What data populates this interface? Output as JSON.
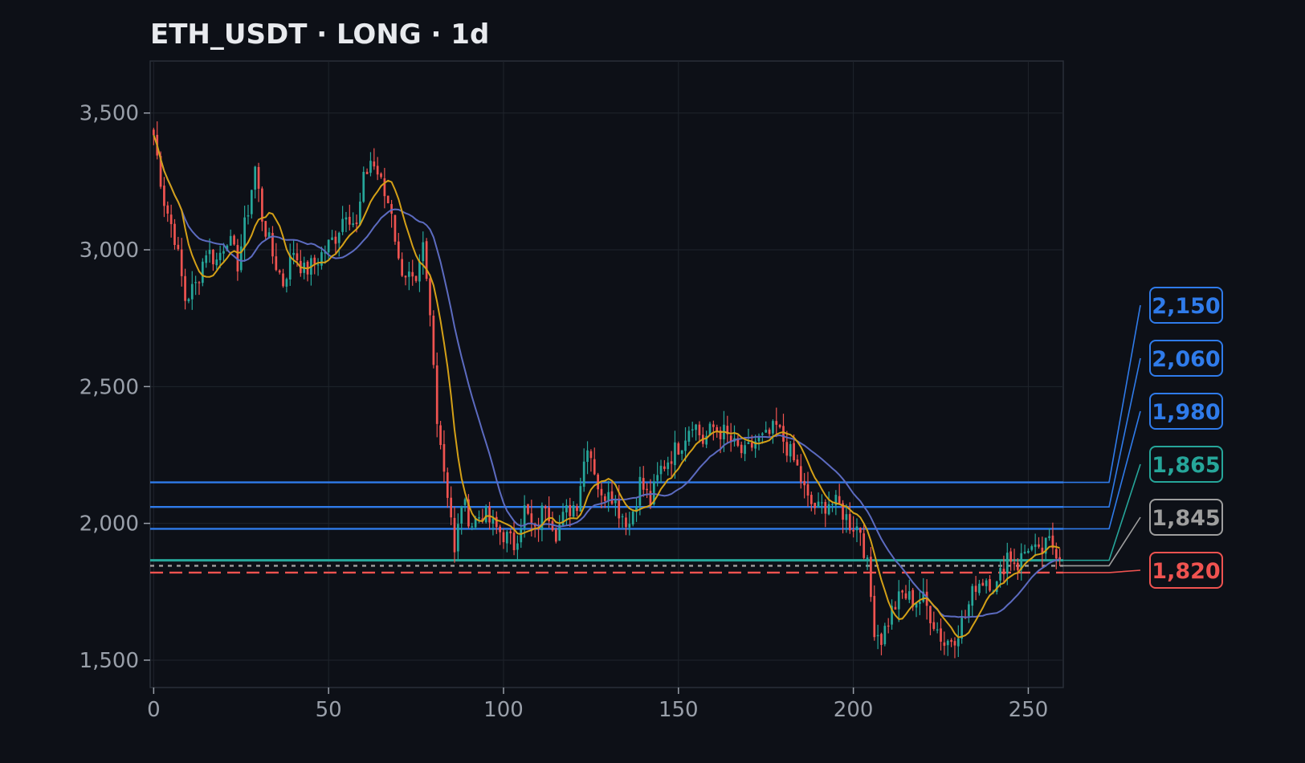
{
  "chart_data": {
    "type": "candlestick",
    "title": "ETH_USDT · LONG · 1d",
    "xlabel": "",
    "ylabel": "",
    "xlim": [
      -1,
      260
    ],
    "ylim": [
      1400,
      3690
    ],
    "x_ticks": [
      0,
      50,
      100,
      150,
      200,
      250
    ],
    "y_ticks": [
      1500,
      2000,
      2500,
      3000,
      3500
    ],
    "y_tick_labels": [
      "1,500",
      "2,000",
      "2,500",
      "3,000",
      "3,500"
    ],
    "x_tick_labels": [
      "0",
      "50",
      "100",
      "150",
      "200",
      "250"
    ],
    "grid": true,
    "colors": {
      "up": "#26a69a",
      "down": "#ef5350",
      "ma_fast": "#d4a017",
      "ma_slow": "#5c6bc0",
      "tp": "#2f7bea",
      "entry": "#26a69a",
      "current": "#9e9e9e",
      "stop": "#ef5350"
    },
    "close_anchors": [
      [
        0,
        3420
      ],
      [
        3,
        3180
      ],
      [
        6,
        3050
      ],
      [
        9,
        2820
      ],
      [
        12,
        2870
      ],
      [
        15,
        3000
      ],
      [
        18,
        2960
      ],
      [
        21,
        3050
      ],
      [
        24,
        2950
      ],
      [
        27,
        3150
      ],
      [
        29,
        3300
      ],
      [
        31,
        3120
      ],
      [
        34,
        2980
      ],
      [
        37,
        2880
      ],
      [
        40,
        3000
      ],
      [
        43,
        2920
      ],
      [
        46,
        2950
      ],
      [
        49,
        3000
      ],
      [
        52,
        3050
      ],
      [
        55,
        3150
      ],
      [
        58,
        3080
      ],
      [
        60,
        3250
      ],
      [
        62,
        3330
      ],
      [
        64,
        3280
      ],
      [
        66,
        3200
      ],
      [
        68,
        3150
      ],
      [
        70,
        2950
      ],
      [
        73,
        2900
      ],
      [
        75,
        2850
      ],
      [
        77,
        3000
      ],
      [
        79,
        2750
      ],
      [
        81,
        2400
      ],
      [
        83,
        2200
      ],
      [
        85,
        2030
      ],
      [
        86,
        1880
      ],
      [
        88,
        2080
      ],
      [
        91,
        2000
      ],
      [
        94,
        2040
      ],
      [
        97,
        1990
      ],
      [
        100,
        1960
      ],
      [
        103,
        1920
      ],
      [
        106,
        2050
      ],
      [
        109,
        1960
      ],
      [
        112,
        2080
      ],
      [
        115,
        1970
      ],
      [
        118,
        2040
      ],
      [
        121,
        2080
      ],
      [
        124,
        2300
      ],
      [
        126,
        2200
      ],
      [
        128,
        2080
      ],
      [
        130,
        2140
      ],
      [
        133,
        2050
      ],
      [
        136,
        2000
      ],
      [
        139,
        2150
      ],
      [
        142,
        2080
      ],
      [
        145,
        2200
      ],
      [
        148,
        2250
      ],
      [
        151,
        2300
      ],
      [
        154,
        2380
      ],
      [
        157,
        2300
      ],
      [
        160,
        2350
      ],
      [
        163,
        2330
      ],
      [
        166,
        2280
      ],
      [
        169,
        2250
      ],
      [
        172,
        2300
      ],
      [
        175,
        2310
      ],
      [
        178,
        2350
      ],
      [
        181,
        2280
      ],
      [
        184,
        2200
      ],
      [
        187,
        2080
      ],
      [
        190,
        2050
      ],
      [
        193,
        2080
      ],
      [
        196,
        2060
      ],
      [
        199,
        2000
      ],
      [
        202,
        1980
      ],
      [
        204,
        1840
      ],
      [
        206,
        1620
      ],
      [
        208,
        1580
      ],
      [
        211,
        1680
      ],
      [
        214,
        1740
      ],
      [
        217,
        1720
      ],
      [
        220,
        1720
      ],
      [
        223,
        1640
      ],
      [
        226,
        1560
      ],
      [
        229,
        1590
      ],
      [
        232,
        1660
      ],
      [
        235,
        1780
      ],
      [
        238,
        1800
      ],
      [
        241,
        1770
      ],
      [
        244,
        1890
      ],
      [
        247,
        1850
      ],
      [
        250,
        1920
      ],
      [
        253,
        1880
      ],
      [
        256,
        1930
      ],
      [
        259,
        1890
      ]
    ],
    "volatility": 32,
    "seed": 7,
    "ma_fast_period": 9,
    "ma_slow_period": 21,
    "levels": [
      {
        "name": "tp3",
        "value": 2150,
        "label": "2,150",
        "color": "#2f7bea",
        "style": "solid"
      },
      {
        "name": "tp2",
        "value": 2060,
        "label": "2,060",
        "color": "#2f7bea",
        "style": "solid"
      },
      {
        "name": "tp1",
        "value": 1980,
        "label": "1,980",
        "color": "#2f7bea",
        "style": "solid"
      },
      {
        "name": "entry",
        "value": 1865,
        "label": "1,865",
        "color": "#26a69a",
        "style": "solid"
      },
      {
        "name": "current",
        "value": 1845,
        "label": "1,845",
        "color": "#9e9e9e",
        "style": "dotted"
      },
      {
        "name": "stop",
        "value": 1820,
        "label": "1,820",
        "color": "#ef5350",
        "style": "dashed"
      }
    ]
  }
}
